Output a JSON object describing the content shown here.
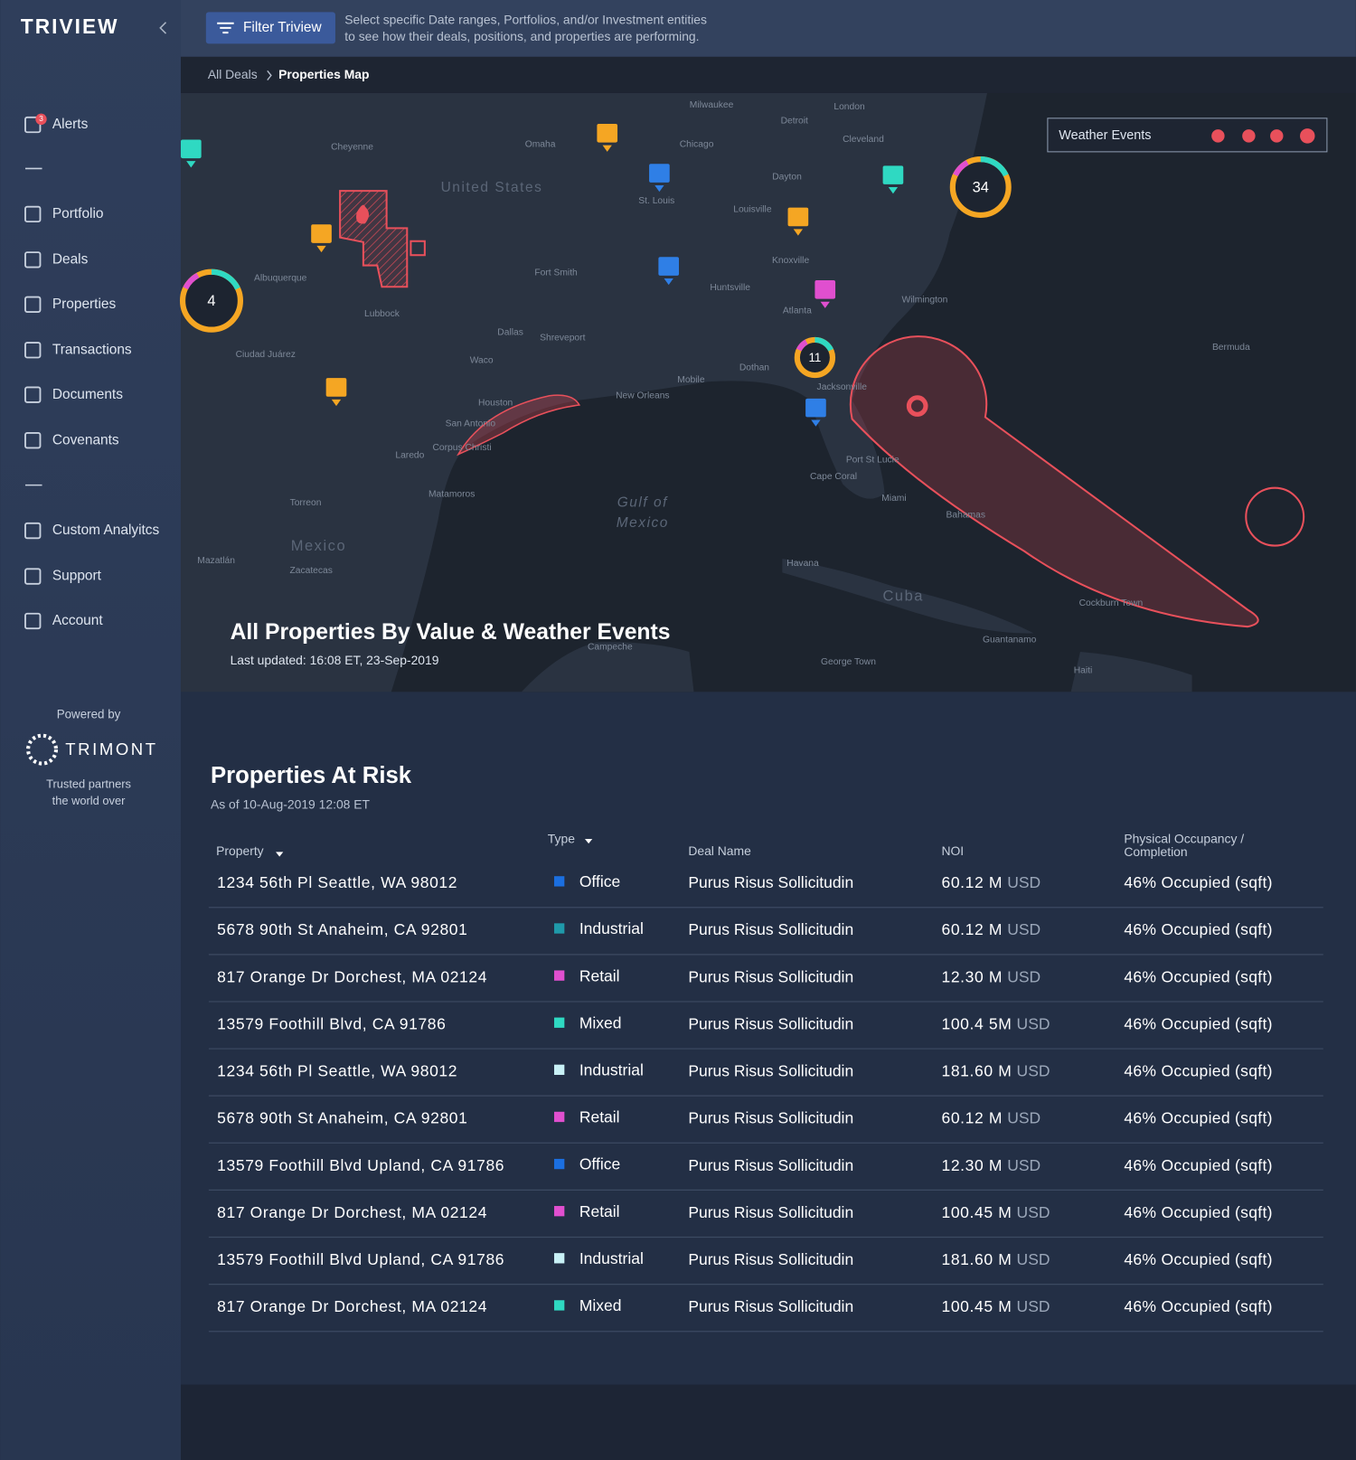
{
  "brand": "TRIVIEW",
  "filter": {
    "button": "Filter Triview",
    "hint": [
      "Select specific Date ranges, Portfolios, and/or Investment entities",
      "to see how their deals, positions, and properties are performing."
    ]
  },
  "nav": [
    {
      "label": "Alerts",
      "badge": "3"
    },
    {
      "label": "Portfolio"
    },
    {
      "label": "Deals"
    },
    {
      "label": "Properties"
    },
    {
      "label": "Transactions"
    },
    {
      "label": "Documents"
    },
    {
      "label": "Covenants"
    },
    {
      "label": "Custom Analyitcs"
    },
    {
      "label": "Support"
    },
    {
      "label": "Account"
    }
  ],
  "powered": {
    "by": "Powered by",
    "company": "TRIMONT",
    "tagline": [
      "Trusted partners",
      "the world over"
    ]
  },
  "breadcrumb": [
    "All Deals",
    "Properties Map"
  ],
  "map": {
    "title": "All Properties By Value & Weather Events",
    "updated": "Last updated: 16:08 ET, 23-Sep-2019",
    "legend": "Weather Events",
    "clusters": [
      "34",
      "4",
      "11"
    ],
    "labels": [
      "United States",
      "Gulf of",
      "Mexico",
      "Mexico",
      "Cuba",
      "Bermuda",
      "Milwaukee",
      "Chicago",
      "Detroit",
      "Cleveland",
      "London",
      "Omaha",
      "Cheyenne",
      "St. Louis",
      "Louisville",
      "Dayton",
      "Albuquerque",
      "Lubbock",
      "Fort Smith",
      "Dallas",
      "Shreveport",
      "Knoxville",
      "Huntsville",
      "Atlanta",
      "Wilmington",
      "Ciudad Juárez",
      "Waco",
      "Jacksonville",
      "New Orleans",
      "Mobile",
      "Dothan",
      "Houston",
      "San Antonio",
      "Corpus Christi",
      "Laredo",
      "Matamoros",
      "Torreon",
      "Zacatecas",
      "Mazatlán",
      "Port St Lucie",
      "Cape Coral",
      "Miami",
      "Havana",
      "Bahamas",
      "Cockburn Town",
      "Guantanamo",
      "George Town",
      "Haiti",
      "Campeche"
    ]
  },
  "table": {
    "title": "Properties At Risk",
    "as_of": "As of 10-Aug-2019 12:08 ET",
    "columns": [
      "Property",
      "Type",
      "Deal Name",
      "NOI",
      [
        "Physical Occupancy /",
        "Completion"
      ]
    ],
    "rows": [
      {
        "property": "1234 56th Pl Seattle, WA 98012",
        "type": "Office",
        "color": "#1b6fe0",
        "deal": "Purus Risus Sollicitudin",
        "noi": "60.12 M",
        "unit": "USD",
        "occupancy": "46% Occupied (sqft)"
      },
      {
        "property": "5678 90th St Anaheim, CA 92801",
        "type": "Industrial",
        "color": "#1f9aaa",
        "deal": "Purus Risus Sollicitudin",
        "noi": "60.12 M",
        "unit": "USD",
        "occupancy": "46% Occupied (sqft)"
      },
      {
        "property": "817 Orange Dr Dorchest, MA 02124",
        "type": "Retail",
        "color": "#e04fcf",
        "deal": "Purus Risus Sollicitudin",
        "noi": "12.30 M",
        "unit": "USD",
        "occupancy": "46% Occupied (sqft)"
      },
      {
        "property": "13579 Foothill Blvd, CA 91786",
        "type": "Mixed",
        "color": "#2fd9c2",
        "deal": "Purus Risus Sollicitudin",
        "noi": "100.4 5M",
        "unit": "USD",
        "occupancy": "46% Occupied (sqft)"
      },
      {
        "property": "1234 56th Pl Seattle, WA 98012",
        "type": "Industrial",
        "color": "#c8f1f6",
        "deal": "Purus Risus Sollicitudin",
        "noi": "181.60 M",
        "unit": "USD",
        "occupancy": "46% Occupied (sqft)"
      },
      {
        "property": "5678 90th St Anaheim, CA 92801",
        "type": "Retail",
        "color": "#e04fcf",
        "deal": "Purus Risus Sollicitudin",
        "noi": "60.12 M",
        "unit": "USD",
        "occupancy": "46% Occupied (sqft)"
      },
      {
        "property": "13579 Foothill Blvd Upland, CA 91786",
        "type": "Office",
        "color": "#1b6fe0",
        "deal": "Purus Risus Sollicitudin",
        "noi": "12.30 M",
        "unit": "USD",
        "occupancy": "46% Occupied (sqft)"
      },
      {
        "property": "817 Orange Dr Dorchest, MA 02124",
        "type": "Retail",
        "color": "#e04fcf",
        "deal": "Purus Risus Sollicitudin",
        "noi": "100.45 M",
        "unit": "USD",
        "occupancy": "46% Occupied (sqft)"
      },
      {
        "property": "13579 Foothill Blvd Upland, CA 91786",
        "type": "Industrial",
        "color": "#c8f1f6",
        "deal": "Purus Risus Sollicitudin",
        "noi": "181.60 M",
        "unit": "USD",
        "occupancy": "46% Occupied (sqft)"
      },
      {
        "property": "817 Orange Dr Dorchest, MA 02124",
        "type": "Mixed",
        "color": "#2fd9c2",
        "deal": "Purus Risus Sollicitudin",
        "noi": "100.45 M",
        "unit": "USD",
        "occupancy": "46% Occupied (sqft)"
      }
    ]
  }
}
